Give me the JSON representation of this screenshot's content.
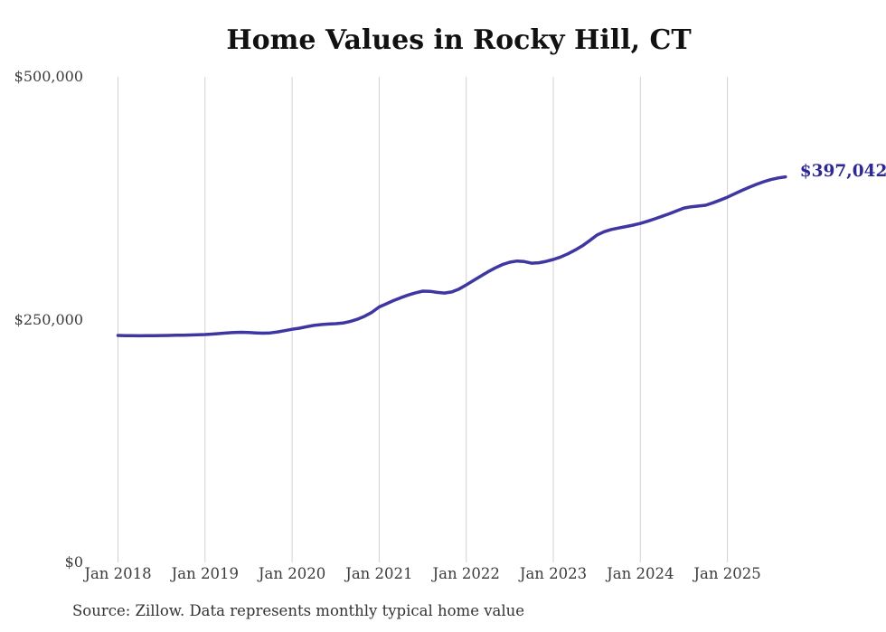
{
  "title": "Home Values in Rocky Hill, CT",
  "source_note": "Source: Zillow. Data represents monthly typical home value",
  "end_label": "$397,042",
  "colors": {
    "background": "#ffffff",
    "line": "#3e37a2",
    "end_label": "#2e2894",
    "grid": "#d2d2d2",
    "axis_text": "#3c3c3c",
    "title_text": "#111111",
    "source_text": "#333333"
  },
  "chart_data": {
    "type": "line",
    "title": "Home Values in Rocky Hill, CT",
    "xlabel": "",
    "ylabel": "",
    "x_unit": "month",
    "x_start": "2018-01",
    "x_end": "2025-09",
    "frequency": "monthly",
    "ylim": [
      0,
      500000
    ],
    "y_ticks": [
      0,
      250000,
      500000
    ],
    "y_tick_labels": [
      "$0",
      "$250,000",
      "$500,000"
    ],
    "x_tick_labels": [
      "Jan 2018",
      "Jan 2019",
      "Jan 2020",
      "Jan 2021",
      "Jan 2022",
      "Jan 2023",
      "Jan 2024",
      "Jan 2025"
    ],
    "grid": "vertical-only",
    "legend": "none",
    "final_value": 397042,
    "series": [
      {
        "name": "Typical home value",
        "values": [
          233700,
          233500,
          233400,
          233300,
          233400,
          233500,
          233600,
          233700,
          233900,
          234000,
          234200,
          234400,
          234600,
          235100,
          235700,
          236300,
          236800,
          237000,
          236700,
          236300,
          236000,
          236300,
          237300,
          238600,
          240000,
          241200,
          242600,
          244000,
          244900,
          245400,
          245800,
          246500,
          248000,
          250400,
          253500,
          257500,
          263000,
          266300,
          269600,
          272600,
          275300,
          277600,
          279300,
          279100,
          278000,
          277400,
          278500,
          281500,
          285800,
          290200,
          294800,
          299300,
          303300,
          306700,
          309100,
          310300,
          309800,
          308100,
          308600,
          310000,
          311900,
          314400,
          317700,
          321600,
          326000,
          331300,
          337000,
          340500,
          342800,
          344300,
          345800,
          347300,
          349100,
          351300,
          353800,
          356400,
          359000,
          362000,
          364900,
          366200,
          366900,
          367800,
          370300,
          373100,
          376100,
          379600,
          383100,
          386300,
          389300,
          392000,
          394200,
          395900,
          397042
        ]
      }
    ]
  }
}
